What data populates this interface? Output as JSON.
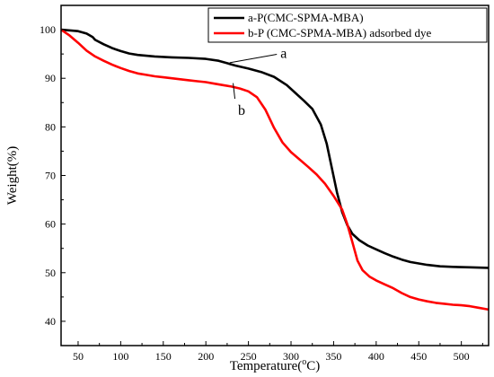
{
  "chart_data": {
    "type": "line",
    "title": "",
    "xlabel": "Temperature(",
    "xlabel_sup": "o",
    "xlabel_unit": "C)",
    "ylabel": "Weight(%)",
    "xlim": [
      30,
      532
    ],
    "ylim": [
      35,
      105
    ],
    "x_ticks": [
      50,
      100,
      150,
      200,
      250,
      300,
      350,
      400,
      450,
      500
    ],
    "y_ticks": [
      40,
      50,
      60,
      70,
      80,
      90,
      100
    ],
    "grid": false,
    "legend_position": "top-right",
    "annotations": [
      {
        "text": "a",
        "series": 0,
        "point": [
          228,
          93.2
        ],
        "label_at": [
          296,
          94.2
        ]
      },
      {
        "text": "b",
        "series": 1,
        "point": [
          232,
          89.0
        ],
        "label_at": [
          242,
          83.2
        ]
      }
    ],
    "series": [
      {
        "name": "a-P(CMC-SPMA-MBA)",
        "color": "#000000",
        "points": [
          [
            30,
            100.0
          ],
          [
            50,
            99.7
          ],
          [
            60,
            99.2
          ],
          [
            67,
            98.5
          ],
          [
            70,
            97.9
          ],
          [
            80,
            97.0
          ],
          [
            90,
            96.2
          ],
          [
            100,
            95.6
          ],
          [
            110,
            95.1
          ],
          [
            120,
            94.8
          ],
          [
            140,
            94.5
          ],
          [
            160,
            94.3
          ],
          [
            180,
            94.2
          ],
          [
            200,
            94.0
          ],
          [
            215,
            93.6
          ],
          [
            225,
            93.1
          ],
          [
            235,
            92.6
          ],
          [
            250,
            92.0
          ],
          [
            265,
            91.3
          ],
          [
            280,
            90.3
          ],
          [
            295,
            88.6
          ],
          [
            305,
            87.0
          ],
          [
            315,
            85.4
          ],
          [
            325,
            83.7
          ],
          [
            335,
            80.5
          ],
          [
            342,
            76.5
          ],
          [
            348,
            71.5
          ],
          [
            354,
            66.5
          ],
          [
            360,
            62.5
          ],
          [
            366,
            59.8
          ],
          [
            372,
            58.0
          ],
          [
            380,
            56.7
          ],
          [
            390,
            55.6
          ],
          [
            400,
            54.8
          ],
          [
            410,
            54.0
          ],
          [
            420,
            53.3
          ],
          [
            430,
            52.7
          ],
          [
            440,
            52.2
          ],
          [
            450,
            51.9
          ],
          [
            460,
            51.6
          ],
          [
            475,
            51.3
          ],
          [
            490,
            51.2
          ],
          [
            510,
            51.1
          ],
          [
            532,
            51.0
          ]
        ]
      },
      {
        "name": "b-P (CMC-SPMA-MBA) adsorbed dye",
        "color": "#ff0000",
        "points": [
          [
            30,
            100.0
          ],
          [
            40,
            98.8
          ],
          [
            50,
            97.3
          ],
          [
            60,
            95.7
          ],
          [
            70,
            94.5
          ],
          [
            80,
            93.6
          ],
          [
            90,
            92.8
          ],
          [
            100,
            92.1
          ],
          [
            110,
            91.5
          ],
          [
            120,
            91.0
          ],
          [
            130,
            90.7
          ],
          [
            140,
            90.4
          ],
          [
            150,
            90.2
          ],
          [
            160,
            90.0
          ],
          [
            170,
            89.8
          ],
          [
            180,
            89.6
          ],
          [
            190,
            89.4
          ],
          [
            200,
            89.2
          ],
          [
            210,
            88.9
          ],
          [
            220,
            88.6
          ],
          [
            230,
            88.3
          ],
          [
            240,
            87.9
          ],
          [
            250,
            87.3
          ],
          [
            260,
            86.1
          ],
          [
            270,
            83.5
          ],
          [
            280,
            79.8
          ],
          [
            290,
            76.8
          ],
          [
            300,
            74.8
          ],
          [
            310,
            73.3
          ],
          [
            320,
            71.8
          ],
          [
            330,
            70.2
          ],
          [
            340,
            68.3
          ],
          [
            350,
            65.8
          ],
          [
            360,
            63.0
          ],
          [
            366,
            60.0
          ],
          [
            372,
            56.3
          ],
          [
            378,
            52.5
          ],
          [
            384,
            50.5
          ],
          [
            392,
            49.2
          ],
          [
            400,
            48.4
          ],
          [
            410,
            47.6
          ],
          [
            420,
            46.8
          ],
          [
            430,
            45.8
          ],
          [
            440,
            45.0
          ],
          [
            450,
            44.5
          ],
          [
            460,
            44.1
          ],
          [
            470,
            43.8
          ],
          [
            480,
            43.6
          ],
          [
            490,
            43.4
          ],
          [
            500,
            43.3
          ],
          [
            510,
            43.1
          ],
          [
            520,
            42.8
          ],
          [
            532,
            42.4
          ]
        ]
      }
    ]
  }
}
